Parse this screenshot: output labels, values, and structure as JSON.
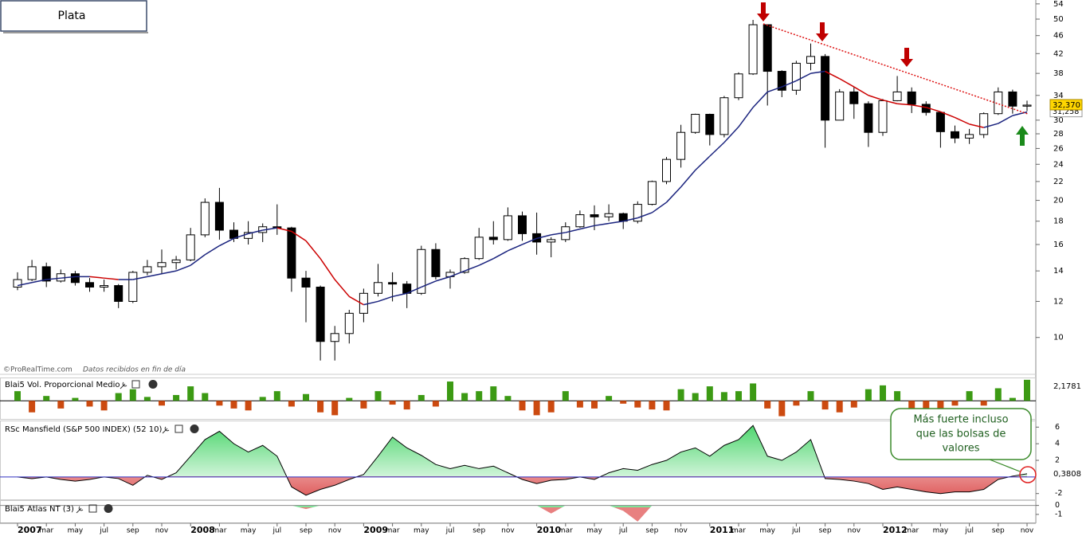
{
  "title": "Plata",
  "watermark": "©ProRealTime.com",
  "note": "Datos recibidos en fin de día",
  "annotation": [
    "Más fuerte incluso",
    "que las bolsas de",
    "valores"
  ],
  "chart_data": [
    {
      "type": "candlestick",
      "log": true,
      "categories": [
        "2007",
        null,
        "mar",
        null,
        "may",
        null,
        "jul",
        null,
        "sep",
        null,
        "nov",
        null,
        "2008",
        null,
        "mar",
        null,
        "may",
        null,
        "jul",
        null,
        "sep",
        null,
        "nov",
        null,
        "2009",
        null,
        "mar",
        null,
        "may",
        null,
        "jul",
        null,
        "sep",
        null,
        "nov",
        null,
        "2010",
        null,
        "mar",
        null,
        "may",
        null,
        "jul",
        null,
        "sep",
        null,
        "nov",
        null,
        "2011",
        null,
        "mar",
        null,
        "may",
        null,
        "jul",
        null,
        "sep",
        null,
        "nov",
        null,
        "2012",
        null,
        "mar",
        null,
        "may",
        null,
        "jul",
        null,
        "sep",
        null,
        "nov"
      ],
      "open": [
        12.9,
        13.4,
        14.3,
        13.3,
        13.8,
        13.2,
        12.9,
        13.0,
        12.0,
        13.9,
        14.3,
        14.6,
        14.8,
        16.8,
        19.8,
        17.2,
        16.5,
        17.0,
        17.5,
        17.4,
        13.5,
        12.9,
        9.8,
        10.2,
        11.3,
        12.5,
        13.2,
        13.1,
        12.5,
        15.6,
        13.6,
        13.9,
        14.9,
        16.6,
        16.4,
        18.5,
        16.9,
        16.2,
        16.4,
        17.5,
        18.6,
        18.4,
        18.7,
        18.0,
        19.6,
        22.0,
        24.6,
        28.2,
        30.9,
        27.9,
        33.6,
        37.9,
        48.6,
        38.4,
        34.9,
        40.0,
        41.4,
        30.0,
        34.6,
        32.6,
        28.2,
        33.1,
        34.6,
        32.5,
        31.2,
        28.3,
        27.4,
        27.9,
        31.0,
        34.6,
        32.2
      ],
      "high": [
        13.9,
        14.8,
        14.6,
        14.1,
        14.0,
        13.5,
        13.4,
        13.1,
        14.0,
        14.8,
        15.6,
        15.1,
        17.4,
        20.2,
        21.3,
        17.9,
        18.0,
        17.8,
        19.6,
        17.5,
        14.0,
        13.0,
        10.6,
        11.5,
        12.8,
        14.5,
        13.9,
        13.3,
        15.9,
        16.1,
        14.1,
        15.0,
        17.4,
        18.0,
        19.3,
        18.9,
        18.8,
        16.6,
        17.9,
        19.0,
        19.5,
        19.6,
        18.8,
        19.9,
        22.1,
        24.9,
        29.3,
        31.0,
        31.0,
        33.9,
        38.2,
        49.8,
        48.7,
        38.6,
        40.5,
        44.2,
        41.9,
        35.1,
        35.5,
        33.0,
        33.4,
        37.5,
        35.4,
        33.0,
        31.3,
        29.2,
        28.7,
        31.2,
        35.4,
        35.0,
        33.1
      ],
      "low": [
        12.7,
        13.3,
        12.9,
        13.2,
        13.0,
        12.6,
        12.6,
        11.6,
        11.9,
        13.7,
        13.8,
        14.1,
        14.7,
        16.6,
        16.4,
        16.2,
        16.0,
        16.2,
        16.8,
        12.6,
        10.8,
        8.9,
        8.9,
        9.7,
        10.8,
        12.3,
        12.0,
        11.6,
        12.4,
        13.4,
        12.8,
        13.8,
        14.8,
        16.0,
        16.3,
        16.3,
        15.2,
        15.0,
        16.2,
        17.4,
        17.2,
        18.0,
        17.3,
        17.8,
        19.5,
        21.7,
        23.6,
        28.0,
        26.4,
        27.5,
        33.2,
        37.7,
        32.3,
        33.7,
        34.1,
        38.6,
        26.1,
        30.1,
        30.2,
        26.2,
        27.7,
        33.0,
        31.1,
        30.7,
        26.1,
        26.7,
        26.6,
        27.4,
        30.8,
        31.0,
        31.4
      ],
      "close": [
        13.4,
        14.3,
        13.3,
        13.8,
        13.2,
        12.9,
        13.0,
        12.0,
        13.9,
        14.3,
        14.6,
        14.8,
        16.8,
        19.8,
        17.2,
        16.5,
        17.0,
        17.5,
        17.4,
        13.5,
        12.9,
        9.8,
        10.2,
        11.3,
        12.5,
        13.2,
        13.1,
        12.5,
        15.6,
        13.6,
        13.9,
        14.9,
        16.6,
        16.4,
        18.5,
        16.9,
        16.2,
        16.4,
        17.5,
        18.6,
        18.4,
        18.7,
        18.0,
        19.6,
        22.0,
        24.6,
        28.2,
        30.9,
        27.9,
        33.6,
        37.9,
        48.6,
        38.4,
        34.9,
        40.0,
        41.4,
        30.0,
        34.6,
        32.6,
        28.2,
        33.1,
        34.6,
        32.5,
        31.2,
        28.3,
        27.4,
        27.9,
        31.0,
        34.6,
        32.2,
        32.37
      ],
      "last_label": "32,370",
      "ma": {
        "values": [
          13.0,
          13.2,
          13.4,
          13.5,
          13.6,
          13.6,
          13.5,
          13.4,
          13.4,
          13.6,
          13.8,
          14.0,
          14.4,
          15.2,
          15.9,
          16.5,
          16.9,
          17.2,
          17.4,
          17.1,
          16.3,
          14.9,
          13.4,
          12.3,
          11.8,
          12.0,
          12.3,
          12.5,
          12.9,
          13.3,
          13.6,
          14.0,
          14.4,
          14.9,
          15.5,
          16.0,
          16.5,
          16.8,
          17.0,
          17.3,
          17.6,
          17.8,
          18.0,
          18.3,
          18.8,
          19.8,
          21.4,
          23.3,
          25.0,
          26.8,
          29.0,
          32.0,
          34.6,
          35.5,
          36.6,
          38.0,
          38.4,
          37.0,
          35.5,
          34.0,
          33.2,
          32.6,
          32.4,
          32.0,
          31.3,
          30.4,
          29.4,
          28.9,
          29.5,
          30.7,
          31.258
        ],
        "last_label": "31,258",
        "up_color": "#1a237e",
        "down_color": "#cc0000"
      },
      "ylim": [
        8.3,
        55.07
      ],
      "yticks": [
        10,
        12,
        14,
        16,
        18,
        20,
        22,
        24,
        26,
        28,
        30,
        34,
        38,
        42,
        46,
        50,
        54
      ]
    },
    {
      "type": "bar",
      "title": "Blai5 Vol. Proporcional Medio",
      "values": [
        1.0,
        -1.2,
        0.5,
        -0.8,
        0.3,
        -0.6,
        -1.0,
        0.8,
        1.2,
        0.4,
        -0.5,
        0.6,
        1.5,
        0.8,
        -0.5,
        -0.8,
        -1.0,
        0.4,
        1.0,
        -0.6,
        0.7,
        -1.2,
        -1.5,
        0.3,
        -0.8,
        1.0,
        -0.4,
        -0.9,
        0.6,
        -0.6,
        2.0,
        0.8,
        1.0,
        1.5,
        0.5,
        -1.0,
        -1.5,
        -1.2,
        1.0,
        -0.7,
        -0.8,
        0.5,
        -0.3,
        -0.7,
        -0.9,
        -1.0,
        1.2,
        0.8,
        1.5,
        0.9,
        1.0,
        1.8,
        -0.8,
        -1.6,
        -0.5,
        1.0,
        -0.9,
        -1.2,
        -0.7,
        1.2,
        1.6,
        1.0,
        -1.4,
        -1.2,
        -1.0,
        -0.5,
        1.0,
        -0.5,
        1.3,
        0.3,
        2.1781
      ],
      "last_label": "2,1781",
      "up_color": "#3c9a14",
      "down_color": "#cc4a10",
      "ylim": [
        -1.8,
        2.25
      ]
    },
    {
      "type": "area",
      "title": "RSc Mansfield (S&P 500 INDEX) (52 10)",
      "values": [
        0,
        -0.2,
        0,
        -0.3,
        -0.5,
        -0.3,
        0,
        -0.2,
        -1,
        0.2,
        -0.3,
        0.5,
        2.5,
        4.5,
        5.5,
        4,
        3,
        3.8,
        2.5,
        -1.2,
        -2.2,
        -1.5,
        -1.0,
        -0.3,
        0.3,
        2.5,
        4.8,
        3.5,
        2.6,
        1.5,
        1.0,
        1.4,
        1.0,
        1.3,
        0.5,
        -0.3,
        -0.8,
        -0.4,
        -0.3,
        0,
        -0.3,
        0.5,
        1.0,
        0.8,
        1.5,
        2.0,
        3.0,
        3.5,
        2.5,
        3.8,
        4.5,
        6.2,
        2.5,
        2.0,
        3.0,
        4.5,
        -0.2,
        -0.3,
        -0.5,
        -0.8,
        -1.5,
        -1.2,
        -1.5,
        -1.8,
        -2.0,
        -1.8,
        -1.8,
        -1.5,
        -0.3,
        0.1,
        0.3808
      ],
      "last_label": "0,3808",
      "up_color": "#7ee89a",
      "down_color": "#e88080",
      "ylim": [
        -2.7,
        6.7
      ],
      "yticks": [
        -2,
        2,
        4,
        6
      ]
    },
    {
      "type": "area",
      "title": "Blai5 Atlas NT (3)",
      "values": [
        0,
        0,
        0,
        0,
        0,
        0,
        0,
        0,
        0,
        0,
        0,
        0,
        0,
        0,
        0,
        0,
        0,
        0,
        0,
        0,
        -0.4,
        0,
        0,
        0,
        0,
        0,
        0,
        0,
        0,
        0,
        0,
        0,
        0,
        0,
        0,
        0,
        0,
        -0.9,
        0,
        0,
        0,
        0,
        -0.6,
        -1.8,
        0,
        0,
        0,
        0,
        0,
        0,
        0,
        0,
        0,
        0,
        0,
        0,
        0,
        0,
        0,
        0,
        0,
        0,
        0,
        0,
        0,
        0,
        0,
        0,
        0,
        0,
        0
      ],
      "up_color": "#7ee89a",
      "down_color": "#e88080",
      "ylim": [
        -1.9,
        0.5
      ],
      "yticks": [
        0,
        -1
      ]
    }
  ]
}
